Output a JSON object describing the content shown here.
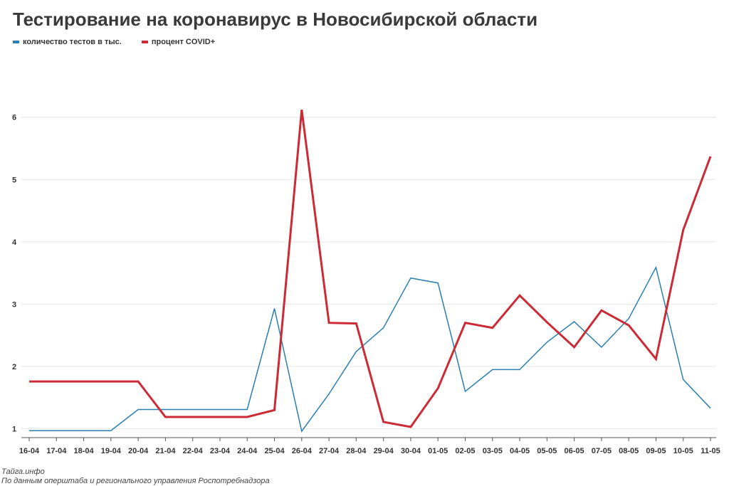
{
  "chart_data": {
    "type": "line",
    "title": "Тестирование на коронавирус в Новосибирской области",
    "categories": [
      "16-04",
      "17-04",
      "18-04",
      "19-04",
      "20-04",
      "21-04",
      "22-04",
      "23-04",
      "24-04",
      "25-04",
      "26-04",
      "27-04",
      "28-04",
      "29-04",
      "30-04",
      "01-05",
      "02-05",
      "03-05",
      "04-05",
      "05-05",
      "06-05",
      "07-05",
      "08-05",
      "09-05",
      "10-05",
      "11-05"
    ],
    "series": [
      {
        "name": "количество тестов в тыс.",
        "color": "#2a7fb0",
        "values": [
          0.97,
          0.97,
          0.97,
          0.97,
          1.31,
          1.31,
          1.31,
          1.31,
          1.31,
          2.93,
          0.96,
          1.56,
          2.24,
          2.62,
          3.42,
          3.34,
          1.6,
          1.95,
          1.95,
          2.39,
          2.72,
          2.31,
          2.77,
          3.59,
          1.79,
          1.33
        ]
      },
      {
        "name": "процент COVID+",
        "color": "#cc2a35",
        "values": [
          1.76,
          1.76,
          1.76,
          1.76,
          1.76,
          1.19,
          1.19,
          1.19,
          1.19,
          1.3,
          6.12,
          2.7,
          2.69,
          1.11,
          1.03,
          1.65,
          2.7,
          2.62,
          3.14,
          2.71,
          2.31,
          2.9,
          2.66,
          2.12,
          4.19,
          5.37
        ]
      }
    ],
    "yticks": [
      1,
      2,
      3,
      4,
      5,
      6
    ],
    "ylim": [
      0.87,
      6.99
    ],
    "xlabel": "",
    "ylabel": "",
    "grid": true,
    "legend": "top-left"
  },
  "footer": {
    "source": "Тайга.инфо",
    "note": "По данным оперштаба и регионального управления Роспотребнадзора"
  }
}
